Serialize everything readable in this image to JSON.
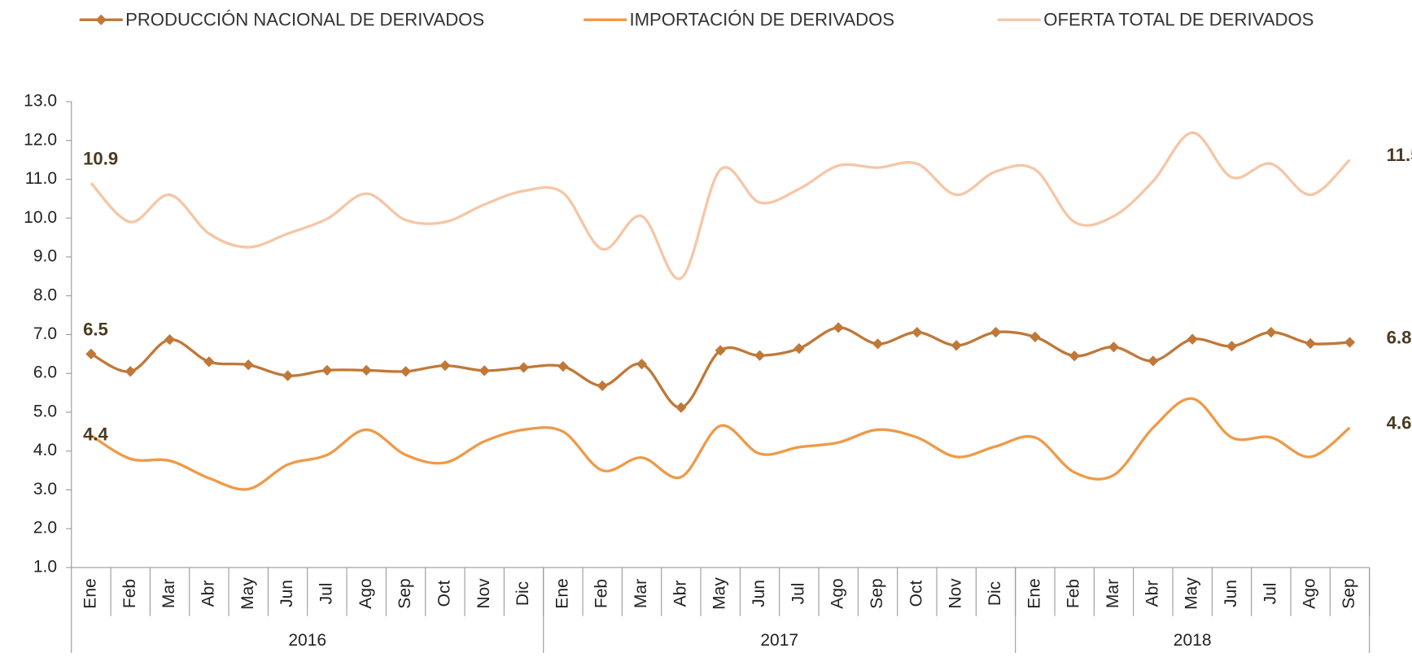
{
  "chart_data": {
    "type": "line",
    "categories": [
      "Ene",
      "Feb",
      "Mar",
      "Abr",
      "May",
      "Jun",
      "Jul",
      "Ago",
      "Sep",
      "Oct",
      "Nov",
      "Dic",
      "Ene",
      "Feb",
      "Mar",
      "Abr",
      "May",
      "Jun",
      "Jul",
      "Ago",
      "Sep",
      "Oct",
      "Nov",
      "Dic",
      "Ene",
      "Feb",
      "Mar",
      "Abr",
      "May",
      "Jun",
      "Jul",
      "Ago",
      "Sep"
    ],
    "year_groups": [
      {
        "label": "2016",
        "count": 12
      },
      {
        "label": "2017",
        "count": 12
      },
      {
        "label": "2018",
        "count": 9
      }
    ],
    "series": [
      {
        "name": "PRODUCCIÓN NACIONAL DE DERIVADOS",
        "color": "#c07838",
        "marker": "diamond",
        "values": [
          6.5,
          6.05,
          6.87,
          6.3,
          6.22,
          5.94,
          6.08,
          6.08,
          6.05,
          6.2,
          6.07,
          6.15,
          6.18,
          5.68,
          6.24,
          5.12,
          6.59,
          6.46,
          6.64,
          7.18,
          6.76,
          7.06,
          6.72,
          7.06,
          6.94,
          6.45,
          6.68,
          6.32,
          6.88,
          6.7,
          7.06,
          6.77,
          6.8
        ]
      },
      {
        "name": "IMPORTACIÓN DE DERIVADOS",
        "color": "#ee9a48",
        "values": [
          4.4,
          3.8,
          3.75,
          3.3,
          3.02,
          3.65,
          3.9,
          4.55,
          3.9,
          3.7,
          4.25,
          4.55,
          4.5,
          3.5,
          3.83,
          3.33,
          4.65,
          3.93,
          4.1,
          4.22,
          4.55,
          4.35,
          3.85,
          4.12,
          4.35,
          3.45,
          3.38,
          4.6,
          5.35,
          4.35,
          4.35,
          3.85,
          4.6
        ]
      },
      {
        "name": "OFERTA TOTAL DE DERIVADOS",
        "color": "#f5c6a6",
        "values": [
          10.9,
          9.9,
          10.6,
          9.6,
          9.25,
          9.6,
          9.98,
          10.63,
          9.95,
          9.9,
          10.35,
          10.7,
          10.65,
          9.2,
          10.05,
          8.45,
          11.25,
          10.4,
          10.75,
          11.35,
          11.3,
          11.4,
          10.6,
          11.2,
          11.25,
          9.9,
          10.05,
          10.95,
          12.2,
          11.05,
          11.4,
          10.6,
          11.5
        ]
      }
    ],
    "ylim": [
      1,
      13
    ],
    "yticks": [
      {
        "value": 1,
        "label": "1.0"
      },
      {
        "value": 2,
        "label": "2.0"
      },
      {
        "value": 3,
        "label": "3.0"
      },
      {
        "value": 4,
        "label": "4.0"
      },
      {
        "value": 5,
        "label": "5.0"
      },
      {
        "value": 6,
        "label": "6.0"
      },
      {
        "value": 7,
        "label": "7.0"
      },
      {
        "value": 8,
        "label": "8.0"
      },
      {
        "value": 9,
        "label": "9.0"
      },
      {
        "value": 10,
        "label": "10.0"
      },
      {
        "value": 11,
        "label": "11.0"
      },
      {
        "value": 12,
        "label": "12.0"
      },
      {
        "value": 13,
        "label": "13.0"
      }
    ],
    "legend": "top"
  }
}
